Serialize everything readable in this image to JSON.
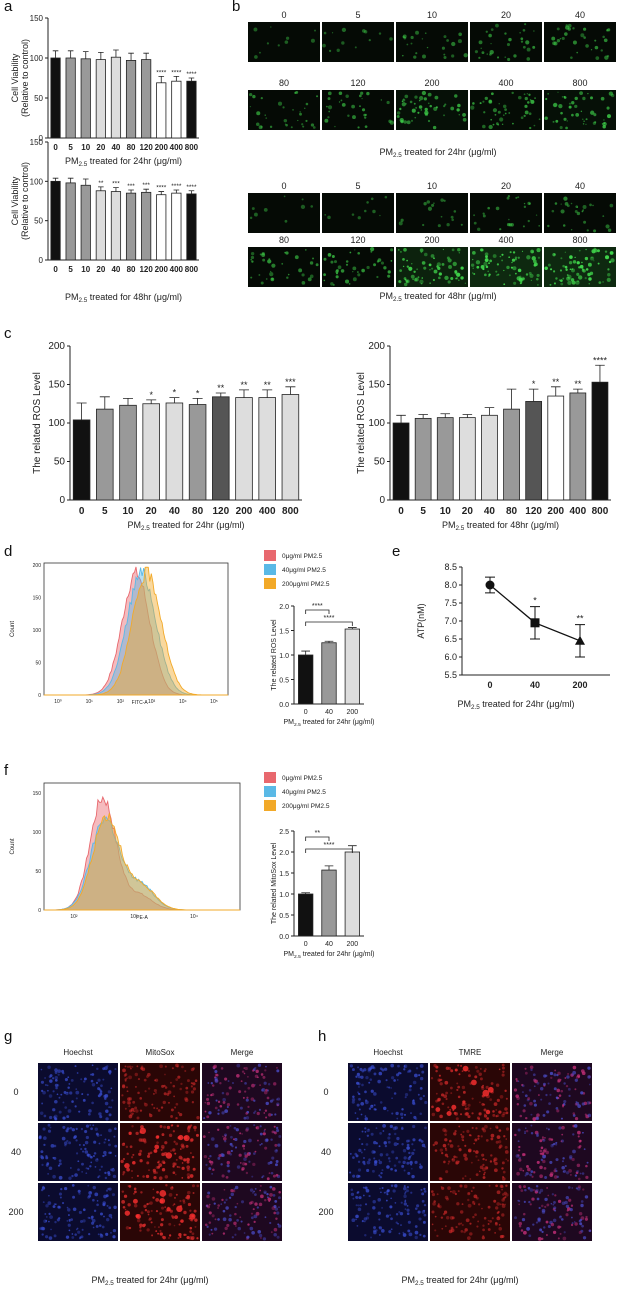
{
  "figure": {
    "labels": {
      "a": "a",
      "b": "b",
      "c": "c",
      "d": "d",
      "e": "e",
      "f": "f",
      "g": "g",
      "h": "h"
    }
  },
  "common": {
    "pm_sub": "2.5",
    "pm_prefix": "PM",
    "x24_suffix": " treated for 24hr (μg/ml)",
    "x48_suffix": " treated for 48hr (μg/ml)",
    "star1": "*",
    "star2": "**",
    "star3": "***",
    "star4": "****"
  },
  "panel_b": {
    "row1_labels": [
      "0",
      "5",
      "10",
      "20",
      "40"
    ],
    "row2_labels": [
      "80",
      "120",
      "200",
      "400",
      "800"
    ],
    "row3_labels": [
      "0",
      "5",
      "10",
      "20",
      "40"
    ],
    "row4_labels": [
      "80",
      "120",
      "200",
      "400",
      "800"
    ],
    "intensity_24": [
      0.05,
      0.1,
      0.25,
      0.35,
      0.35,
      0.35,
      0.35,
      0.6,
      0.55,
      0.6
    ],
    "intensity_48": [
      0.04,
      0.06,
      0.15,
      0.25,
      0.3,
      0.4,
      0.5,
      0.85,
      0.95,
      0.95
    ]
  },
  "panel_d": {
    "legend": [
      "0μg/ml PM2.5",
      "40μg/ml PM2.5",
      "200μg/ml PM2.5"
    ],
    "colors": [
      "#e8686e",
      "#5ab9e6",
      "#f2a928"
    ],
    "x_axis_label": "FITC-A",
    "y_axis_label": "Count",
    "y_ticks": [
      "200",
      "150",
      "100",
      "50",
      "0"
    ],
    "x_ticks": [
      "10⁰",
      "10¹",
      "10²",
      "10³",
      "10⁴",
      "10⁵"
    ]
  },
  "panel_f": {
    "legend": [
      "0μg/ml PM2.5",
      "40μg/ml PM2.5",
      "200μg/ml PM2.5"
    ],
    "x_axis_label": "PE-A",
    "y_axis_label": "Count",
    "y_ticks": [
      "150",
      "100",
      "50",
      "0"
    ],
    "x_ticks": [
      "10²",
      "10³",
      "10⁴"
    ]
  },
  "panel_g": {
    "cols": [
      "Hoechst",
      "MitoSox",
      "Merge"
    ],
    "rows": [
      "0",
      "40",
      "200"
    ]
  },
  "panel_h": {
    "cols": [
      "Hoechst",
      "TMRE",
      "Merge"
    ],
    "rows": [
      "0",
      "40",
      "200"
    ]
  },
  "chart_data": [
    {
      "id": "a1",
      "type": "bar",
      "title": "",
      "ylabel": "Cell Viability (Relative to control)",
      "xlabel": "PM2.5 treated for 24hr (μg/ml)",
      "categories": [
        "0",
        "5",
        "10",
        "20",
        "40",
        "80",
        "120",
        "200",
        "400",
        "800"
      ],
      "values": [
        100,
        100,
        99,
        98,
        101,
        97,
        98,
        69,
        71,
        71
      ],
      "errors": [
        9,
        9,
        9,
        9,
        9,
        9,
        8,
        8,
        6,
        4
      ],
      "colors": [
        "#111",
        "#999",
        "#999",
        "#ddd",
        "#ddd",
        "#999",
        "#999",
        "#fff",
        "#fff",
        "#111"
      ],
      "stars": [
        "",
        "",
        "",
        "",
        "",
        "",
        "",
        "****",
        "****",
        "****"
      ],
      "ylim": [
        0,
        150
      ],
      "yticks": [
        0,
        50,
        100,
        150
      ]
    },
    {
      "id": "a2",
      "type": "bar",
      "ylabel": "Cell Viability (Relative to control)",
      "xlabel": "PM2.5 treated for 48hr (μg/ml)",
      "categories": [
        "0",
        "5",
        "10",
        "20",
        "40",
        "80",
        "120",
        "200",
        "400",
        "800"
      ],
      "values": [
        100,
        98,
        95,
        88,
        87,
        85,
        86,
        83,
        85,
        84
      ],
      "errors": [
        4,
        6,
        8,
        5,
        5,
        4,
        4,
        4,
        4,
        4
      ],
      "colors": [
        "#111",
        "#999",
        "#999",
        "#ddd",
        "#ddd",
        "#999",
        "#999",
        "#fff",
        "#fff",
        "#111"
      ],
      "stars": [
        "",
        "",
        "",
        "**",
        "***",
        "***",
        "***",
        "****",
        "****",
        "****"
      ],
      "ylim": [
        0,
        150
      ],
      "yticks": [
        0,
        50,
        100,
        150
      ]
    },
    {
      "id": "c1",
      "type": "bar",
      "ylabel": "The related ROS Level",
      "xlabel": "PM2.5 treated for 24hr (μg/ml)",
      "categories": [
        "0",
        "5",
        "10",
        "20",
        "40",
        "80",
        "120",
        "200",
        "400",
        "800"
      ],
      "values": [
        104,
        118,
        123,
        125,
        126,
        124,
        134,
        133,
        133,
        137
      ],
      "errors": [
        22,
        16,
        9,
        5,
        7,
        8,
        5,
        10,
        10,
        10
      ],
      "colors": [
        "#111",
        "#999",
        "#999",
        "#ddd",
        "#ddd",
        "#999",
        "#555",
        "#ddd",
        "#ddd",
        "#ddd"
      ],
      "stars": [
        "",
        "",
        "",
        "*",
        "*",
        "*",
        "**",
        "**",
        "**",
        "***"
      ],
      "ylim": [
        0,
        200
      ],
      "yticks": [
        0,
        50,
        100,
        150,
        200
      ]
    },
    {
      "id": "c2",
      "type": "bar",
      "ylabel": "The related ROS Level",
      "xlabel": "PM2.5 treated for 48hr (μg/ml)",
      "categories": [
        "0",
        "5",
        "10",
        "20",
        "40",
        "80",
        "120",
        "200",
        "400",
        "800"
      ],
      "values": [
        100,
        106,
        107,
        107,
        110,
        118,
        128,
        135,
        139,
        153
      ],
      "errors": [
        10,
        5,
        5,
        4,
        10,
        26,
        16,
        12,
        5,
        22
      ],
      "colors": [
        "#111",
        "#999",
        "#999",
        "#ddd",
        "#ddd",
        "#999",
        "#555",
        "#fff",
        "#999",
        "#111"
      ],
      "stars": [
        "",
        "",
        "",
        "",
        "",
        "",
        "*",
        "**",
        "**",
        "****"
      ],
      "ylim": [
        0,
        200
      ],
      "yticks": [
        0,
        50,
        100,
        150,
        200
      ]
    },
    {
      "id": "d_bar",
      "type": "bar",
      "ylabel": "The related ROS Level",
      "xlabel": "PM2.5 treated for 24hr (μg/ml)",
      "categories": [
        "0",
        "40",
        "200"
      ],
      "values": [
        1.0,
        1.25,
        1.53
      ],
      "errors": [
        0.08,
        0.03,
        0.03
      ],
      "colors": [
        "#111",
        "#999",
        "#ddd"
      ],
      "ylim": [
        0,
        2.0
      ],
      "yticks": [
        0.0,
        0.5,
        1.0,
        1.5,
        2.0
      ],
      "brackets": [
        {
          "from": 0,
          "to": 1,
          "label": "****"
        },
        {
          "from": 0,
          "to": 2,
          "label": "****"
        }
      ]
    },
    {
      "id": "e",
      "type": "line",
      "ylabel": "ATP(nM)",
      "xlabel": "PM2.5 treated for 24hr (μg/ml)",
      "categories": [
        "0",
        "40",
        "200"
      ],
      "values": [
        8.0,
        6.95,
        6.45
      ],
      "errors": [
        0.22,
        0.45,
        0.45
      ],
      "stars": [
        "",
        "*",
        "**"
      ],
      "ylim": [
        5.5,
        8.5
      ],
      "yticks": [
        5.5,
        6.0,
        6.5,
        7.0,
        7.5,
        8.0,
        8.5
      ]
    },
    {
      "id": "f_bar",
      "type": "bar",
      "ylabel": "The related MitoSox Level",
      "xlabel": "PM2.5 treated for 24hr (μg/ml)",
      "categories": [
        "0",
        "40",
        "200"
      ],
      "values": [
        1.0,
        1.57,
        2.0
      ],
      "errors": [
        0.03,
        0.1,
        0.15
      ],
      "colors": [
        "#111",
        "#999",
        "#ddd"
      ],
      "ylim": [
        0,
        2.5
      ],
      "yticks": [
        0.0,
        0.5,
        1.0,
        1.5,
        2.0,
        2.5
      ],
      "brackets": [
        {
          "from": 0,
          "to": 1,
          "label": "**"
        },
        {
          "from": 0,
          "to": 2,
          "label": "****"
        }
      ]
    }
  ]
}
